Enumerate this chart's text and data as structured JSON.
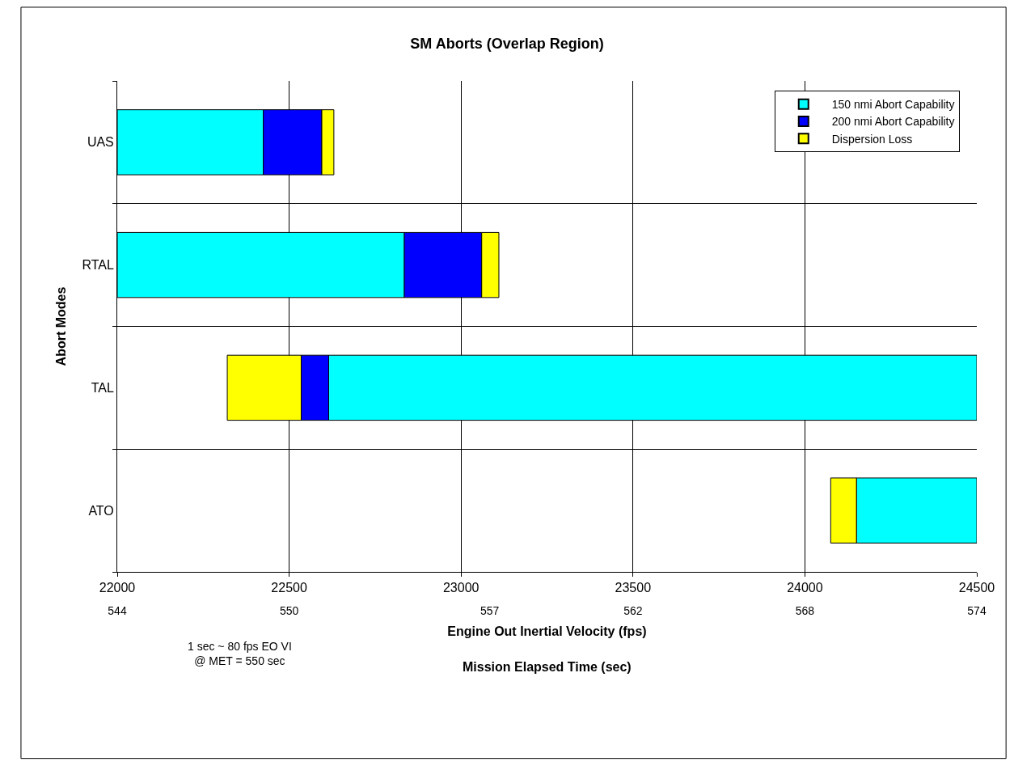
{
  "chart_data": {
    "type": "bar",
    "orientation": "horizontal",
    "title": "SM Aborts (Overlap Region)",
    "xlabel": "Engine Out Inertial Velocity (fps)",
    "x2label": "Mission Elapsed Time (sec)",
    "ylabel": "Abort Modes",
    "categories": [
      "UAS",
      "RTAL",
      "TAL",
      "ATO"
    ],
    "series": [
      {
        "name": "150 nmi Abort Capability",
        "color": "#00ffff",
        "base": [
          22000,
          22000,
          22615,
          24150
        ],
        "values": [
          425,
          835,
          1885,
          350
        ]
      },
      {
        "name": "200 nmi Abort Capability",
        "color": "#0000ff",
        "base": [
          22425,
          22835,
          22535,
          null
        ],
        "values": [
          170,
          225,
          80,
          null
        ]
      },
      {
        "name": "Dispersion Loss",
        "color": "#ffff00",
        "base": [
          22595,
          23060,
          22320,
          24075
        ],
        "values": [
          35,
          50,
          215,
          75
        ]
      }
    ],
    "xlim": [
      22000,
      24500
    ],
    "xticks": [
      22000,
      22500,
      23000,
      23500,
      24000,
      24500
    ],
    "x2lim": [
      544,
      574
    ],
    "x2ticks": [
      544,
      550,
      557,
      562,
      568,
      574
    ],
    "annotations": [
      "1 sec ~ 80 fps EO VI\n@ MET = 550 sec"
    ],
    "grid": true,
    "legend": "top right"
  }
}
